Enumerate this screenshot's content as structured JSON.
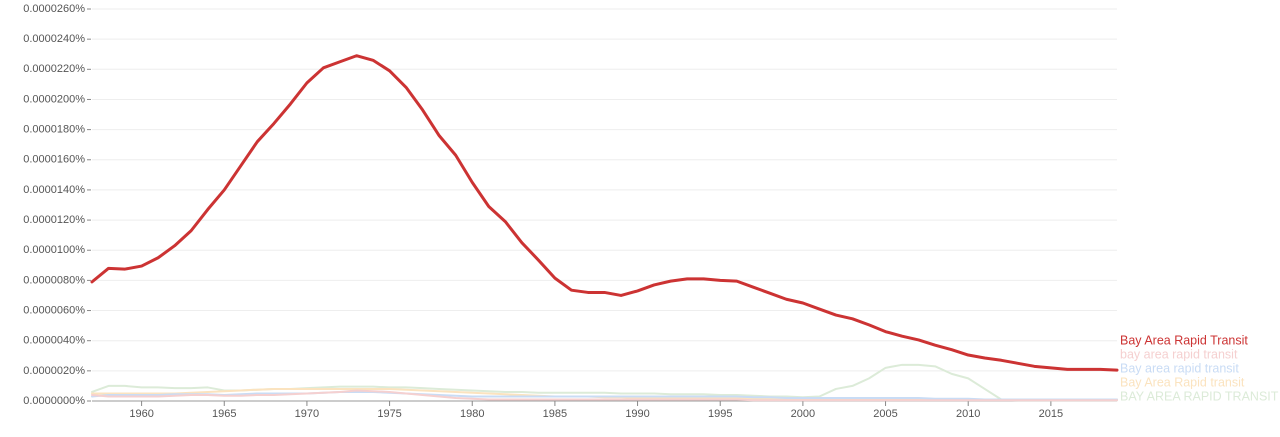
{
  "chart_data": {
    "type": "line",
    "x": [
      1957,
      1958,
      1959,
      1960,
      1961,
      1962,
      1963,
      1964,
      1965,
      1966,
      1967,
      1968,
      1969,
      1970,
      1971,
      1972,
      1973,
      1974,
      1975,
      1976,
      1977,
      1978,
      1979,
      1980,
      1981,
      1982,
      1983,
      1984,
      1985,
      1986,
      1987,
      1988,
      1989,
      1990,
      1991,
      1992,
      1993,
      1994,
      1995,
      1996,
      1997,
      1998,
      1999,
      2000,
      2001,
      2002,
      2003,
      2004,
      2005,
      2006,
      2007,
      2008,
      2009,
      2010,
      2011,
      2012,
      2013,
      2014,
      2015,
      2016,
      2017,
      2018,
      2019
    ],
    "xlim": [
      1957,
      2019
    ],
    "xticks": [
      1960,
      1965,
      1970,
      1975,
      1980,
      1985,
      1990,
      1995,
      2000,
      2005,
      2010,
      2015
    ],
    "ylim": [
      0,
      2.6e-05
    ],
    "yticks": [
      {
        "value": 0,
        "label": "0.0000000%"
      },
      {
        "value": 2e-06,
        "label": "0.0000020%"
      },
      {
        "value": 4e-06,
        "label": "0.0000040%"
      },
      {
        "value": 6e-06,
        "label": "0.0000060%"
      },
      {
        "value": 8e-06,
        "label": "0.0000080%"
      },
      {
        "value": 1e-05,
        "label": "0.0000100%"
      },
      {
        "value": 1.2e-05,
        "label": "0.0000120%"
      },
      {
        "value": 1.4e-05,
        "label": "0.0000140%"
      },
      {
        "value": 1.6e-05,
        "label": "0.0000160%"
      },
      {
        "value": 1.8e-05,
        "label": "0.0000180%"
      },
      {
        "value": 2e-05,
        "label": "0.0000200%"
      },
      {
        "value": 2.2e-05,
        "label": "0.0000220%"
      },
      {
        "value": 2.4e-05,
        "label": "0.0000240%"
      },
      {
        "value": 2.6e-05,
        "label": "0.0000260%"
      }
    ],
    "grid": true,
    "legend": "right",
    "series": [
      {
        "name": "Bay Area Rapid Transit",
        "color": "#cc3333",
        "values": [
          7.9e-06,
          8.8e-06,
          8.75e-06,
          8.95e-06,
          9.5e-06,
          1.03e-05,
          1.13e-05,
          1.27e-05,
          1.4e-05,
          1.56e-05,
          1.72e-05,
          1.84e-05,
          1.97e-05,
          2.11e-05,
          2.21e-05,
          2.25e-05,
          2.29e-05,
          2.26e-05,
          2.19e-05,
          2.08e-05,
          1.93e-05,
          1.76e-05,
          1.63e-05,
          1.45e-05,
          1.29e-05,
          1.19e-05,
          1.05e-05,
          9.35e-06,
          8.15e-06,
          7.35e-06,
          7.2e-06,
          7.2e-06,
          7e-06,
          7.3e-06,
          7.7e-06,
          7.95e-06,
          8.1e-06,
          8.1e-06,
          8e-06,
          7.95e-06,
          7.55e-06,
          7.15e-06,
          6.75e-06,
          6.5e-06,
          6.1e-06,
          5.7e-06,
          5.45e-06,
          5.05e-06,
          4.6e-06,
          4.3e-06,
          4.05e-06,
          3.7e-06,
          3.4e-06,
          3.05e-06,
          2.85e-06,
          2.7e-06,
          2.5e-06,
          2.3e-06,
          2.2e-06,
          2.1e-06,
          2.1e-06,
          2.1e-06,
          2.05e-06
        ]
      },
      {
        "name": "bay area rapid transit",
        "color": "#f5d0d0",
        "values": [
          4e-07,
          3e-07,
          3e-07,
          3e-07,
          3e-07,
          3.5e-07,
          4e-07,
          4e-07,
          3.5e-07,
          3.5e-07,
          4e-07,
          4e-07,
          4.5e-07,
          5e-07,
          5.5e-07,
          6e-07,
          7e-07,
          6.5e-07,
          6e-07,
          5e-07,
          4e-07,
          3e-07,
          2e-07,
          1.5e-07,
          1e-07,
          1e-07,
          1e-07,
          1e-07,
          1e-07,
          1e-07,
          1e-07,
          1e-07,
          1e-07,
          1e-07,
          1e-07,
          1e-07,
          1e-07,
          1e-07,
          1e-07,
          1e-07,
          5e-08,
          5e-08,
          5e-08,
          5e-08,
          5e-08,
          5e-08,
          5e-08,
          5e-08,
          5e-08,
          5e-08,
          5e-08,
          5e-08,
          5e-08,
          5e-08,
          5e-08,
          5e-08,
          5e-08,
          5e-08,
          5e-08,
          5e-08,
          5e-08,
          5e-08,
          5e-08
        ]
      },
      {
        "name": "Bay area rapid transit",
        "color": "#c9dcf5",
        "values": [
          3e-07,
          4e-07,
          4e-07,
          4e-07,
          4e-07,
          4.5e-07,
          4.5e-07,
          4.5e-07,
          4e-07,
          4.5e-07,
          5e-07,
          5e-07,
          5e-07,
          5e-07,
          5.5e-07,
          6e-07,
          6e-07,
          6e-07,
          5.5e-07,
          5e-07,
          4.5e-07,
          4e-07,
          3.5e-07,
          3e-07,
          3e-07,
          3e-07,
          3e-07,
          3e-07,
          3e-07,
          3e-07,
          3e-07,
          3e-07,
          3e-07,
          3e-07,
          3e-07,
          3e-07,
          3e-07,
          3e-07,
          3e-07,
          3e-07,
          2.5e-07,
          2.5e-07,
          2e-07,
          2e-07,
          2e-07,
          2e-07,
          2e-07,
          2e-07,
          2e-07,
          2e-07,
          2e-07,
          1.5e-07,
          1.5e-07,
          1.5e-07,
          1e-07,
          1e-07,
          1e-07,
          1e-07,
          1e-07,
          1e-07,
          1e-07,
          1e-07,
          1e-07
        ]
      },
      {
        "name": "Bay Area Rapid transit",
        "color": "#fbe3bf",
        "values": [
          5e-07,
          5e-07,
          5e-07,
          5e-07,
          5e-07,
          5e-07,
          5.5e-07,
          6e-07,
          6.5e-07,
          7e-07,
          7.5e-07,
          8e-07,
          8e-07,
          8e-07,
          8e-07,
          8e-07,
          8e-07,
          8e-07,
          8e-07,
          7.5e-07,
          7e-07,
          6.5e-07,
          6e-07,
          5.5e-07,
          5e-07,
          4.5e-07,
          4e-07,
          3.5e-07,
          3e-07,
          3e-07,
          3e-07,
          2.5e-07,
          2.5e-07,
          2e-07,
          2e-07,
          2e-07,
          2e-07,
          2e-07,
          2e-07,
          2e-07,
          1.5e-07,
          1.5e-07,
          1.5e-07,
          1.5e-07,
          1.5e-07,
          1.5e-07,
          1.5e-07,
          1.5e-07,
          1.5e-07,
          1.5e-07,
          1e-07,
          1e-07,
          1e-07,
          1e-07,
          1e-07,
          1e-07,
          1e-07,
          1e-07,
          1e-07,
          1e-07,
          1e-07,
          1e-07,
          1e-07
        ]
      },
      {
        "name": "BAY AREA RAPID TRANSIT",
        "color": "#dcebd8",
        "values": [
          6e-07,
          1e-06,
          1e-06,
          9e-07,
          9e-07,
          8.5e-07,
          8.5e-07,
          9e-07,
          7e-07,
          7e-07,
          7.5e-07,
          8e-07,
          8e-07,
          8.5e-07,
          9e-07,
          9.5e-07,
          9.5e-07,
          9.5e-07,
          9e-07,
          9e-07,
          8.5e-07,
          8e-07,
          7.5e-07,
          7e-07,
          6.5e-07,
          6e-07,
          6e-07,
          5.5e-07,
          5.5e-07,
          5.5e-07,
          5.5e-07,
          5.5e-07,
          5e-07,
          5e-07,
          5e-07,
          4.5e-07,
          4.5e-07,
          4.5e-07,
          4e-07,
          4e-07,
          3.5e-07,
          3e-07,
          3e-07,
          2.5e-07,
          3e-07,
          8e-07,
          1e-06,
          1.5e-06,
          2.2e-06,
          2.4e-06,
          2.4e-06,
          2.3e-06,
          1.8e-06,
          1.5e-06,
          8e-07,
          1e-07,
          5e-08,
          5e-08,
          5e-08,
          5e-08,
          5e-08,
          5e-08,
          5e-08
        ]
      }
    ]
  }
}
